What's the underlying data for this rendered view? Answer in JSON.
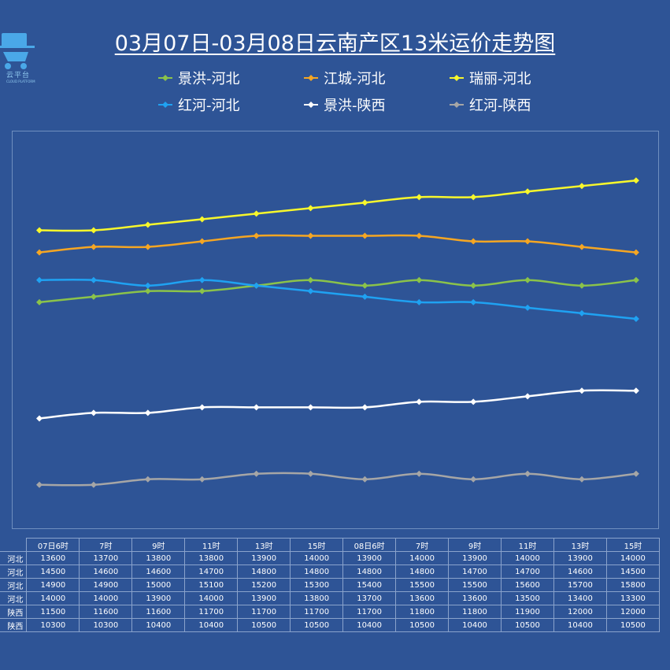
{
  "brand": {
    "name": "云平台",
    "subtitle": "CLOUD PLATFORM"
  },
  "title": "03月07日-03月08日云南产区13米运价走势图",
  "chart_data": {
    "type": "line",
    "title": "03月07日-03月08日云南产区13米运价走势图",
    "categories": [
      "07日6时",
      "7时",
      "9时",
      "11时",
      "13时",
      "15时",
      "08日6时",
      "7时",
      "9时",
      "11时",
      "13时",
      "15时"
    ],
    "series": [
      {
        "name": "景洪-河北",
        "color": "#8bc34a",
        "values": [
          13600,
          13700,
          13800,
          13800,
          13900,
          14000,
          13900,
          14000,
          13900,
          14000,
          13900,
          14000
        ]
      },
      {
        "name": "江城-河北",
        "color": "#f5a623",
        "values": [
          14500,
          14600,
          14600,
          14700,
          14800,
          14800,
          14800,
          14800,
          14700,
          14700,
          14600,
          14500
        ]
      },
      {
        "name": "瑞丽-河北",
        "color": "#f7f72c",
        "values": [
          14900,
          14900,
          15000,
          15100,
          15200,
          15300,
          15400,
          15500,
          15500,
          15600,
          15700,
          15800
        ]
      },
      {
        "name": "红河-河北",
        "color": "#1fa2f2",
        "values": [
          14000,
          14000,
          13900,
          14000,
          13900,
          13800,
          13700,
          13600,
          13600,
          13500,
          13400,
          13300
        ]
      },
      {
        "name": "景洪-陕西",
        "color": "#ffffff",
        "values": [
          11500,
          11600,
          11600,
          11700,
          11700,
          11700,
          11700,
          11800,
          11800,
          11900,
          12000,
          12000
        ]
      },
      {
        "name": "红河-陕西",
        "color": "#a6a6a6",
        "values": [
          10300,
          10300,
          10400,
          10400,
          10500,
          10500,
          10400,
          10500,
          10400,
          10500,
          10400,
          10500
        ]
      }
    ],
    "ylim": [
      9500,
      16700
    ],
    "grid": false,
    "legend_position": "top"
  },
  "table": {
    "row_labels": [
      "河北",
      "河北",
      "河北",
      "河北",
      "陕西",
      "陕西"
    ]
  }
}
